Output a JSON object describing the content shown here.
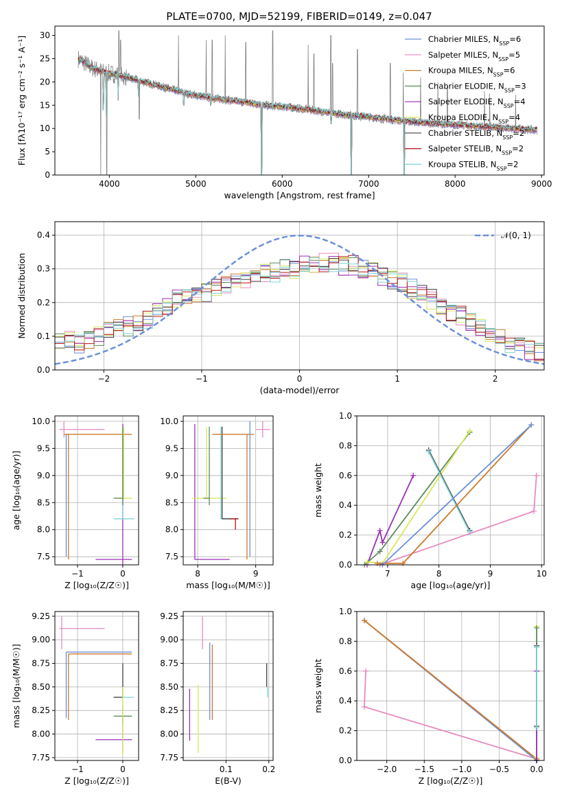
{
  "figure": {
    "title": "PLATE=0700, MJD=52199, FIBERID=0149, z=0.047"
  },
  "model_labels": [
    {
      "key": "chab_miles",
      "name": "Chabrier MILES",
      "n": "6",
      "color": "#6b8fd8"
    },
    {
      "key": "salp_miles",
      "name": "Salpeter MILES",
      "n": "5",
      "color": "#e58ac0"
    },
    {
      "key": "krou_miles",
      "name": "Kroupa MILES",
      "n": "6",
      "color": "#cc7a2a"
    },
    {
      "key": "chab_elodie",
      "name": "Chabrier ELODIE",
      "n": "3",
      "color": "#5c8a5c"
    },
    {
      "key": "salp_elodie",
      "name": "Salpeter ELODIE",
      "n": "4",
      "color": "#9a2fb5"
    },
    {
      "key": "krou_elodie",
      "name": "Kroupa ELODIE",
      "n": "4",
      "color": "#d8e85a"
    },
    {
      "key": "chab_stelib",
      "name": "Chabrier STELIB",
      "n": "2",
      "color": "#404040"
    },
    {
      "key": "salp_stelib",
      "name": "Salpeter STELIB",
      "n": "2",
      "color": "#b01010"
    },
    {
      "key": "krou_stelib",
      "name": "Kroupa STELIB",
      "n": "2",
      "color": "#7fd4d4"
    }
  ],
  "chart_data": [
    {
      "id": "spectrum",
      "type": "line",
      "xlabel": "wavelength [Angstrom, rest frame]",
      "ylabel": "Flux [fλ10⁻¹⁷ erg cm⁻² s⁻¹ A⁻¹]",
      "xlim": [
        3370,
        9030
      ],
      "ylim": [
        0,
        32
      ],
      "xticks": [
        4000,
        5000,
        6000,
        7000,
        8000,
        9000
      ],
      "yticks": [
        0,
        5,
        10,
        15,
        20,
        25,
        30
      ],
      "legend": "top-right",
      "continuum": [
        [
          3640,
          25
        ],
        [
          3800,
          23
        ],
        [
          3950,
          22
        ],
        [
          4100,
          21.5
        ],
        [
          4300,
          20.5
        ],
        [
          4500,
          19.5
        ],
        [
          4700,
          18.5
        ],
        [
          4900,
          17.5
        ],
        [
          5200,
          16.5
        ],
        [
          5500,
          15.8
        ],
        [
          5800,
          15
        ],
        [
          6100,
          14.5
        ],
        [
          6400,
          13.8
        ],
        [
          6700,
          13
        ],
        [
          7000,
          12.5
        ],
        [
          7300,
          11.8
        ],
        [
          7600,
          11.3
        ],
        [
          8000,
          10.8
        ],
        [
          8400,
          10.3
        ],
        [
          8800,
          9.8
        ],
        [
          8950,
          9.6
        ]
      ],
      "observed_spikes": [
        [
          4110,
          31
        ],
        [
          4130,
          29
        ],
        [
          4800,
          30
        ],
        [
          5120,
          29
        ],
        [
          5190,
          29
        ],
        [
          5340,
          30
        ],
        [
          5577,
          28.5
        ],
        [
          5890,
          31
        ],
        [
          6300,
          28
        ],
        [
          6365,
          26
        ],
        [
          6563,
          30
        ],
        [
          6583,
          24
        ],
        [
          6870,
          27
        ],
        [
          7250,
          24
        ],
        [
          7400,
          22
        ],
        [
          7600,
          21
        ],
        [
          7800,
          20
        ],
        [
          7910,
          19
        ],
        [
          8340,
          18
        ],
        [
          8400,
          17.5
        ],
        [
          8700,
          17.2
        ]
      ],
      "observed_dips": [
        [
          3900,
          0
        ],
        [
          3970,
          0
        ],
        [
          4345,
          12
        ],
        [
          5760,
          0
        ],
        [
          6800,
          0
        ],
        [
          7412,
          0
        ]
      ],
      "model_dips": [
        [
          3933,
          14
        ],
        [
          3968,
          13
        ],
        [
          4102,
          16
        ],
        [
          4340,
          17
        ],
        [
          4861,
          15
        ],
        [
          5175,
          15
        ],
        [
          5890,
          14
        ],
        [
          5760,
          0
        ],
        [
          6563,
          11
        ],
        [
          6800,
          0
        ],
        [
          7412,
          0
        ]
      ]
    },
    {
      "id": "residuals",
      "type": "area",
      "xlabel": "(data-model)/error",
      "ylabel": "Normed distribution",
      "xlim": [
        -2.5,
        2.5
      ],
      "ylim": [
        0,
        0.44
      ],
      "xticks": [
        -2,
        -1,
        0,
        1,
        2
      ],
      "yticks": [
        0.0,
        0.1,
        0.2,
        0.3,
        0.4
      ],
      "legend": "top-right",
      "gaussian_label": "𝒩(0, 1)",
      "gaussian_color": "#6b8fd8",
      "bin_width": 0.1,
      "profile": [
        0.09,
        0.09,
        0.08,
        0.09,
        0.1,
        0.12,
        0.13,
        0.13,
        0.14,
        0.15,
        0.17,
        0.19,
        0.21,
        0.22,
        0.22,
        0.23,
        0.25,
        0.25,
        0.26,
        0.27,
        0.28,
        0.29,
        0.29,
        0.3,
        0.3,
        0.31,
        0.31,
        0.32,
        0.32,
        0.31,
        0.31,
        0.3,
        0.29,
        0.28,
        0.27,
        0.26,
        0.24,
        0.23,
        0.21,
        0.19,
        0.17,
        0.16,
        0.14,
        0.12,
        0.11,
        0.09,
        0.08,
        0.07,
        0.06,
        0.05
      ]
    },
    {
      "id": "age_z",
      "type": "scatter",
      "xlabel": "Z [log₁₀(Z/Z☉)]",
      "ylabel": "age  [log₁₀(age/yr)]",
      "xlim": [
        -1.5,
        0.35
      ],
      "ylim": [
        7.35,
        10.1
      ],
      "xticks": [
        -1,
        0
      ],
      "yticks": [
        7.5,
        8.0,
        8.5,
        9.0,
        9.5,
        10.0
      ],
      "errorbars": [
        {
          "m": "salp_miles",
          "x": -1.3,
          "y": 9.85,
          "xe": [
            -1.4,
            -0.4
          ],
          "ye": [
            9.7,
            10.0
          ]
        },
        {
          "m": "krou_miles",
          "x": -1.2,
          "y": 9.76,
          "xe": [
            -1.3,
            0.2
          ],
          "ye": [
            7.45,
            9.76
          ]
        },
        {
          "m": "chab_miles",
          "x": -1.25,
          "y": 9.76,
          "xe": [
            -1.25,
            -1.25
          ],
          "ye": [
            7.5,
            9.76
          ]
        },
        {
          "m": "salp_elodie",
          "x": 0.0,
          "y": 7.45,
          "xe": [
            -0.6,
            0.2
          ],
          "ye": [
            7.35,
            9.95
          ]
        },
        {
          "m": "krou_elodie",
          "x": 0.02,
          "y": 8.58,
          "xe": [
            -0.2,
            0.2
          ],
          "ye": [
            8.58,
            9.9
          ]
        },
        {
          "m": "krou_stelib",
          "x": 0.0,
          "y": 8.2,
          "xe": [
            -0.2,
            0.25
          ],
          "ye": [
            8.2,
            9.9
          ]
        },
        {
          "m": "chab_elodie",
          "x": 0.0,
          "y": 8.58,
          "xe": [
            -0.2,
            0.0
          ],
          "ye": [
            8.45,
            9.9
          ]
        }
      ]
    },
    {
      "id": "age_mass",
      "type": "scatter",
      "xlabel": "mass [log₁₀(M/M☉)]",
      "ylabel": "",
      "xlim": [
        7.75,
        9.3
      ],
      "ylim": [
        7.35,
        10.1
      ],
      "xticks": [
        8,
        9
      ],
      "yticks": [
        7.5,
        8.0,
        8.5,
        9.0,
        9.5,
        10.0
      ],
      "errorbars": [
        {
          "m": "salp_elodie",
          "x": 7.95,
          "y": 7.45,
          "xe": [
            7.95,
            8.55
          ],
          "ye": [
            7.45,
            9.95
          ]
        },
        {
          "m": "krou_elodie",
          "x": 8.15,
          "y": 8.58,
          "xe": [
            7.9,
            8.5
          ],
          "ye": [
            8.58,
            9.9
          ]
        },
        {
          "m": "chab_elodie",
          "x": 8.2,
          "y": 8.58,
          "xe": [
            8.1,
            8.2
          ],
          "ye": [
            8.45,
            9.9
          ]
        },
        {
          "m": "krou_stelib",
          "x": 8.4,
          "y": 8.2,
          "xe": [
            8.4,
            8.6
          ],
          "ye": [
            8.2,
            9.9
          ]
        },
        {
          "m": "chab_stelib",
          "x": 8.42,
          "y": 8.2,
          "xe": [
            8.42,
            8.7
          ],
          "ye": [
            8.2,
            9.9
          ]
        },
        {
          "m": "salp_stelib",
          "x": 8.65,
          "y": 8.2,
          "xe": [
            8.55,
            8.7
          ],
          "ye": [
            8.0,
            8.2
          ]
        },
        {
          "m": "krou_miles",
          "x": 8.85,
          "y": 9.76,
          "xe": [
            8.25,
            8.97
          ],
          "ye": [
            7.45,
            9.76
          ]
        },
        {
          "m": "chab_miles",
          "x": 8.9,
          "y": 9.76,
          "xe": [
            8.9,
            8.9
          ],
          "ye": [
            7.5,
            10.0
          ]
        },
        {
          "m": "salp_miles",
          "x": 9.12,
          "y": 9.85,
          "xe": [
            9.0,
            9.25
          ],
          "ye": [
            9.7,
            10.0
          ]
        }
      ]
    },
    {
      "id": "weight_age",
      "type": "line",
      "xlabel": "age  [log₁₀(age/yr)]",
      "ylabel": "mass weight",
      "xlim": [
        6.4,
        10.05
      ],
      "ylim": [
        0,
        1.0
      ],
      "xticks": [
        7,
        8,
        9,
        10
      ],
      "yticks": [
        0.0,
        0.2,
        0.4,
        0.6,
        0.8,
        1.0
      ],
      "series": [
        {
          "m": "salp_elodie",
          "points": [
            [
              6.6,
              0
            ],
            [
              6.85,
              0.23
            ],
            [
              6.9,
              0.15
            ],
            [
              7.5,
              0.6
            ]
          ]
        },
        {
          "m": "chab_elodie",
          "points": [
            [
              6.55,
              0
            ],
            [
              6.85,
              0.09
            ],
            [
              8.6,
              0.89
            ]
          ]
        },
        {
          "m": "krou_elodie",
          "points": [
            [
              6.6,
              0.02
            ],
            [
              6.9,
              0.01
            ],
            [
              8.6,
              0.9
            ]
          ]
        },
        {
          "m": "chab_stelib",
          "points": [
            [
              7.8,
              0.77
            ],
            [
              8.6,
              0.23
            ]
          ]
        },
        {
          "m": "krou_stelib",
          "points": [
            [
              7.8,
              0.76
            ],
            [
              8.6,
              0.22
            ]
          ]
        },
        {
          "m": "salp_miles",
          "points": [
            [
              6.85,
              0.0
            ],
            [
              9.85,
              0.36
            ],
            [
              9.9,
              0.6
            ]
          ]
        },
        {
          "m": "krou_miles",
          "points": [
            [
              6.8,
              0.01
            ],
            [
              7.3,
              0.01
            ],
            [
              9.8,
              0.94
            ]
          ]
        },
        {
          "m": "chab_miles",
          "points": [
            [
              6.9,
              0.0
            ],
            [
              9.8,
              0.94
            ]
          ]
        }
      ]
    },
    {
      "id": "mass_z",
      "type": "scatter",
      "xlabel": "Z [log₁₀(Z/Z☉)]",
      "ylabel": "mass [log₁₀(M/M☉)]",
      "xlim": [
        -1.5,
        0.35
      ],
      "ylim": [
        7.72,
        9.3
      ],
      "xticks": [
        -1,
        0
      ],
      "yticks": [
        7.75,
        8.0,
        8.25,
        8.5,
        8.75,
        9.0,
        9.25
      ],
      "errorbars": [
        {
          "m": "salp_miles",
          "x": -1.35,
          "y": 9.12,
          "xe": [
            -1.4,
            -0.4
          ],
          "ye": [
            8.9,
            9.25
          ]
        },
        {
          "m": "chab_miles",
          "x": -1.25,
          "y": 8.87,
          "xe": [
            -1.25,
            0.2
          ],
          "ye": [
            8.17,
            8.87
          ]
        },
        {
          "m": "krou_miles",
          "x": -1.2,
          "y": 8.85,
          "xe": [
            -1.2,
            0.2
          ],
          "ye": [
            8.15,
            8.85
          ]
        },
        {
          "m": "salp_elodie",
          "x": 0.0,
          "y": 7.94,
          "xe": [
            -0.6,
            0.2
          ],
          "ye": [
            7.8,
            8.3
          ]
        },
        {
          "m": "krou_stelib",
          "x": 0.0,
          "y": 8.39,
          "xe": [
            -0.2,
            0.25
          ],
          "ye": [
            8.3,
            8.5
          ]
        },
        {
          "m": "chab_stelib",
          "x": 0.0,
          "y": 8.39,
          "xe": [
            -0.2,
            0.0
          ],
          "ye": [
            8.39,
            8.75
          ]
        },
        {
          "m": "chab_elodie",
          "x": 0.0,
          "y": 8.19,
          "xe": [
            -0.2,
            0.2
          ],
          "ye": [
            8.1,
            8.2
          ]
        },
        {
          "m": "krou_elodie",
          "x": 0.0,
          "y": 8.2,
          "xe": [
            0.0,
            0.0
          ],
          "ye": [
            7.78,
            8.5
          ]
        }
      ]
    },
    {
      "id": "mass_ebv",
      "type": "scatter",
      "xlabel": "E(B-V)",
      "ylabel": "",
      "xlim": [
        0.0,
        0.21
      ],
      "ylim": [
        7.72,
        9.3
      ],
      "xticks": [
        0.1,
        0.2
      ],
      "yticks": [
        7.75,
        8.0,
        8.25,
        8.5,
        8.75,
        9.0,
        9.25
      ],
      "errorbars": [
        {
          "m": "salp_elodie",
          "x": 0.015,
          "y": 7.94,
          "xe": [
            0.015,
            0.015
          ],
          "ye": [
            7.93,
            8.48
          ]
        },
        {
          "m": "krou_elodie",
          "x": 0.035,
          "y": 8.2,
          "xe": [
            0.035,
            0.035
          ],
          "ye": [
            7.8,
            8.52
          ]
        },
        {
          "m": "salp_miles",
          "x": 0.045,
          "y": 9.12,
          "xe": [
            0.045,
            0.045
          ],
          "ye": [
            8.9,
            9.25
          ]
        },
        {
          "m": "chab_miles",
          "x": 0.062,
          "y": 8.87,
          "xe": [
            0.062,
            0.062
          ],
          "ye": [
            8.15,
            8.97
          ]
        },
        {
          "m": "krou_miles",
          "x": 0.068,
          "y": 8.85,
          "xe": [
            0.068,
            0.068
          ],
          "ye": [
            8.15,
            8.95
          ]
        },
        {
          "m": "chab_stelib",
          "x": 0.195,
          "y": 8.5,
          "xe": [
            0.195,
            0.195
          ],
          "ye": [
            8.5,
            8.75
          ]
        },
        {
          "m": "krou_stelib",
          "x": 0.197,
          "y": 8.39,
          "xe": [
            0.197,
            0.197
          ],
          "ye": [
            8.39,
            8.5
          ]
        }
      ]
    },
    {
      "id": "weight_z",
      "type": "line",
      "xlabel": "Z [log₁₀(Z/Z☉)]",
      "ylabel": "mass weight",
      "xlim": [
        -2.4,
        0.1
      ],
      "ylim": [
        0,
        1.0
      ],
      "xticks": [
        -2.0,
        -1.5,
        -1.0,
        -0.5,
        0.0
      ],
      "yticks": [
        0.0,
        0.2,
        0.4,
        0.6,
        0.8,
        1.0
      ],
      "series": [
        {
          "m": "salp_miles",
          "points": [
            [
              -2.28,
              0.6
            ],
            [
              -2.3,
              0.36
            ],
            [
              0.0,
              0.01
            ]
          ]
        },
        {
          "m": "chab_miles",
          "points": [
            [
              -2.3,
              0.94
            ],
            [
              0.0,
              0.0
            ]
          ]
        },
        {
          "m": "krou_miles",
          "points": [
            [
              -2.3,
              0.94
            ],
            [
              0.0,
              0.01
            ]
          ]
        },
        {
          "m": "krou_elodie",
          "points": [
            [
              0.0,
              0.9
            ],
            [
              0.0,
              0.02
            ]
          ]
        },
        {
          "m": "chab_elodie",
          "points": [
            [
              0.0,
              0.89
            ],
            [
              0.0,
              0.0
            ]
          ]
        },
        {
          "m": "salp_elodie",
          "points": [
            [
              0.0,
              0.6
            ],
            [
              0.0,
              0.0
            ]
          ]
        },
        {
          "m": "chab_stelib",
          "points": [
            [
              0.0,
              0.77
            ],
            [
              0.0,
              0.23
            ]
          ]
        },
        {
          "m": "krou_stelib",
          "points": [
            [
              0.0,
              0.76
            ],
            [
              0.0,
              0.22
            ]
          ]
        }
      ]
    }
  ]
}
